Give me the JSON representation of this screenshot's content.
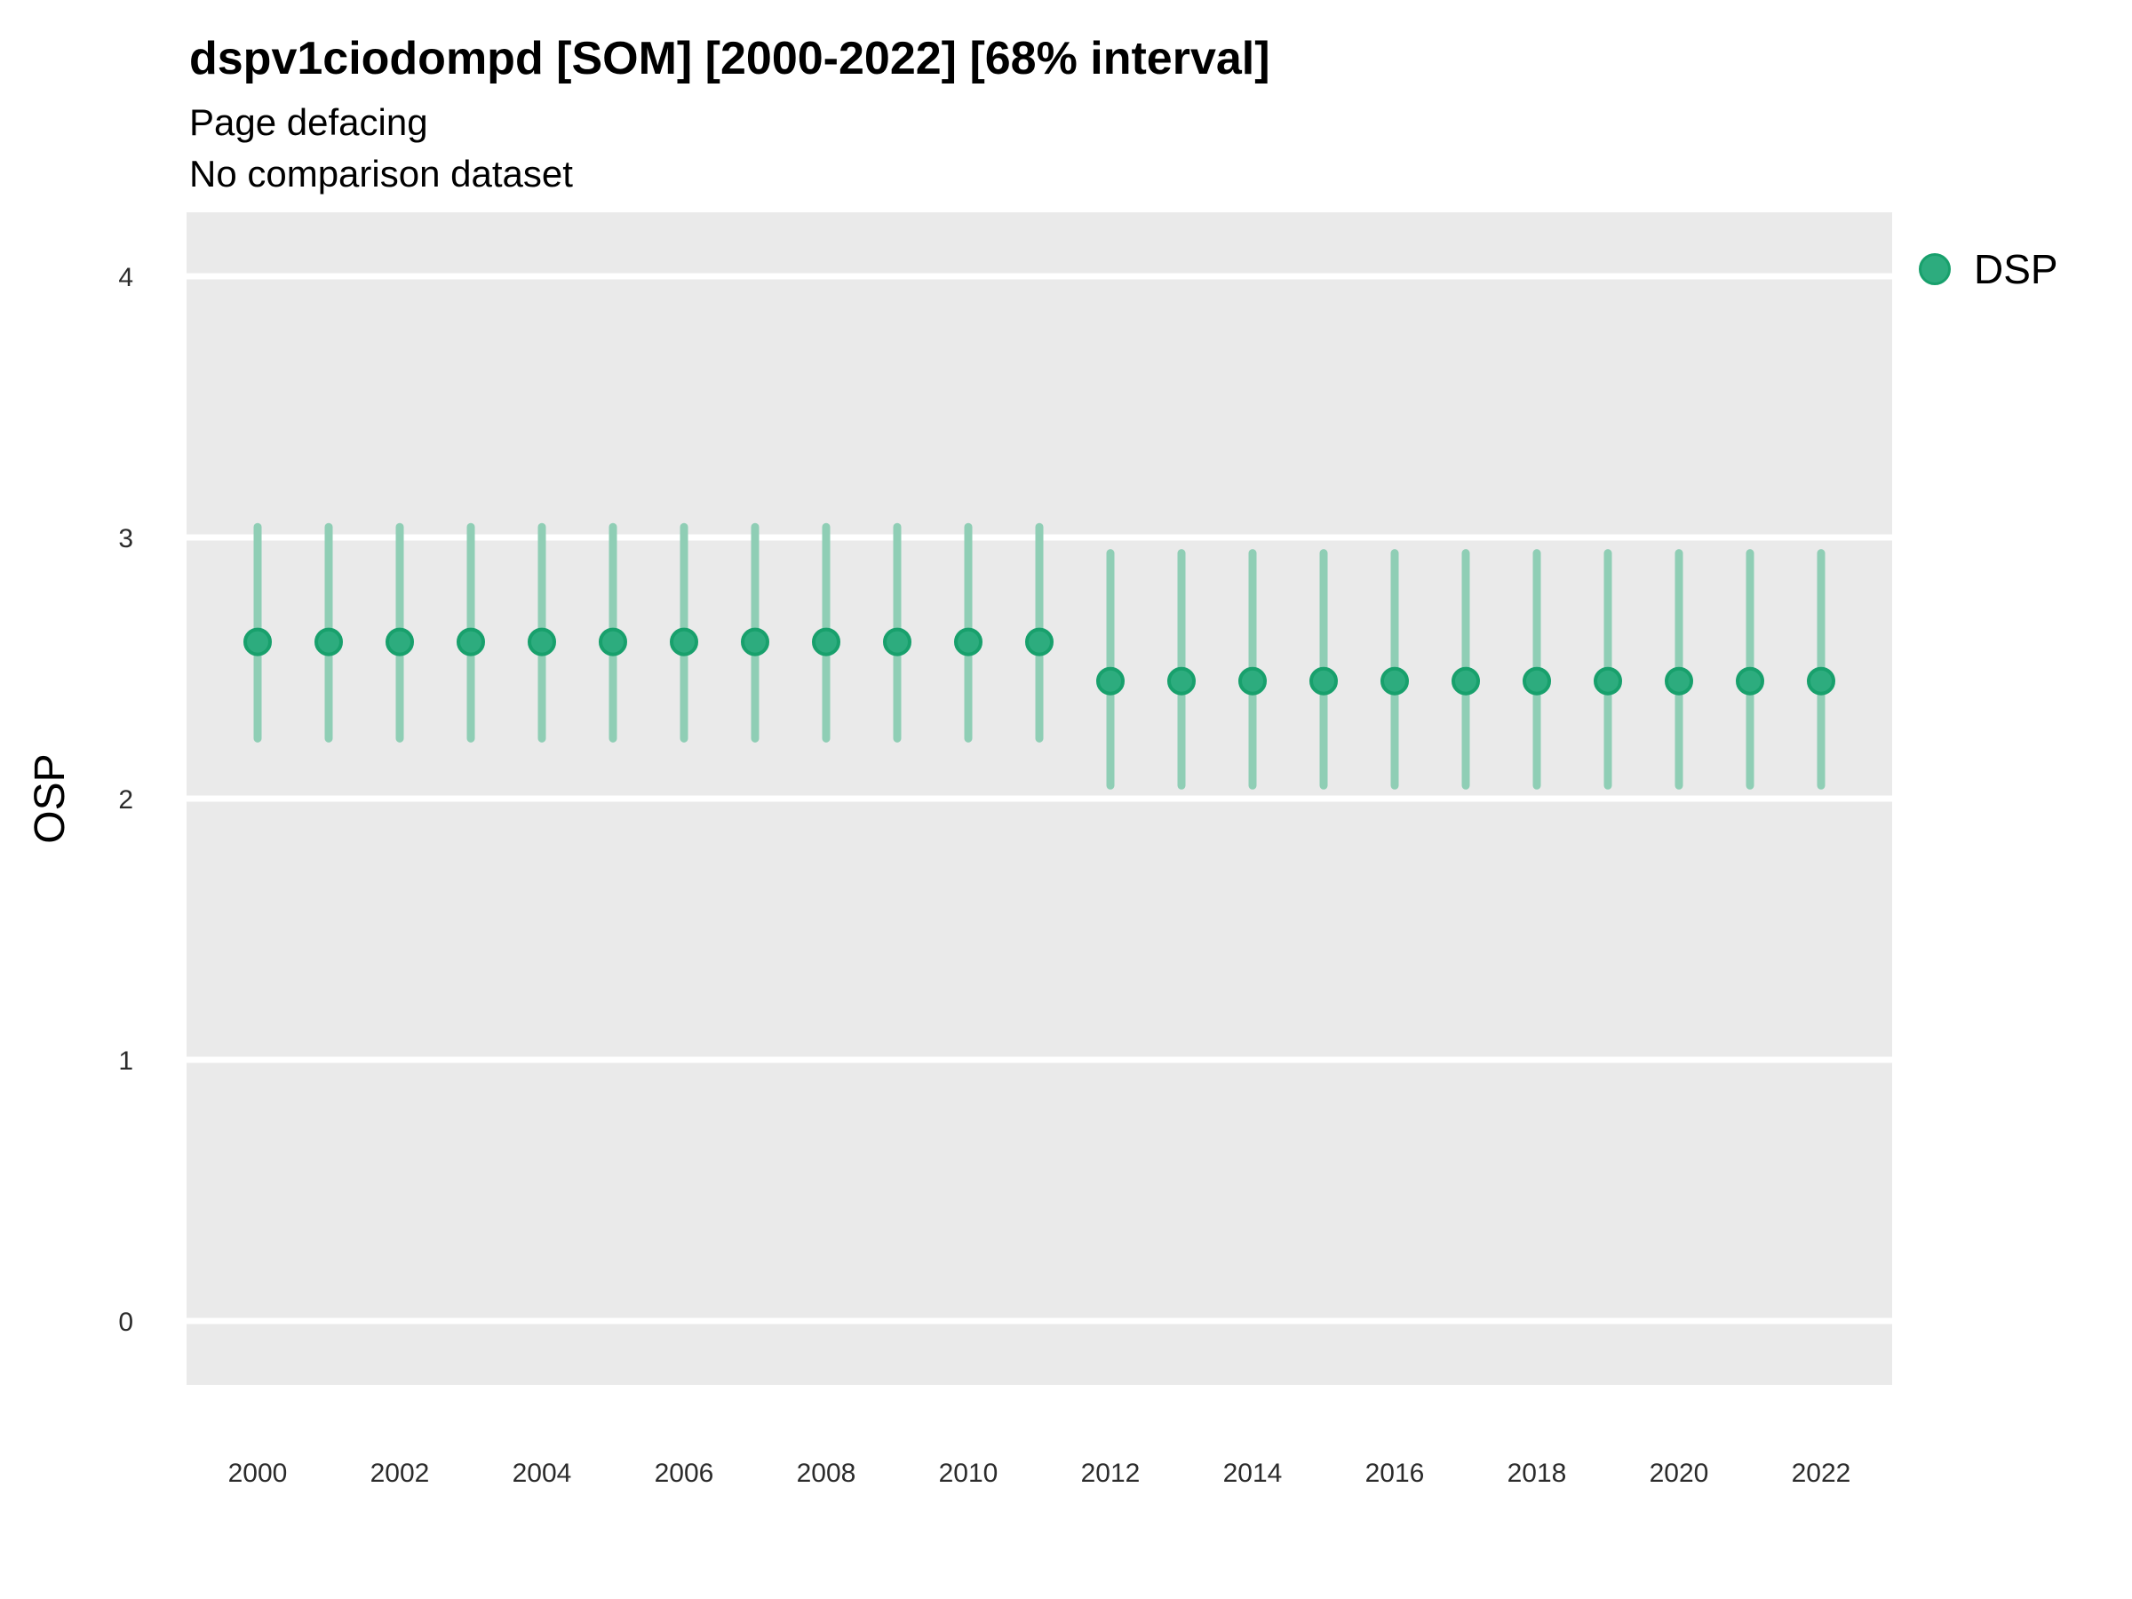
{
  "figure": {
    "title": "dspv1ciodompd [SOM] [2000-2022] [68% interval]",
    "subtitle": "Page defacing",
    "note": "No comparison dataset"
  },
  "legend": {
    "label": "DSP"
  },
  "colors": {
    "point_fill": "#2dac7e",
    "point_stroke": "#18a06c",
    "interval_bar": "#8fceb5",
    "panel_background": "#eaeaea",
    "gridline": "#ffffff",
    "tick_text": "#2b2b2b"
  },
  "chart_data": {
    "type": "scatter",
    "subtype": "pointrange",
    "title": "dspv1ciodompd [SOM] [2000-2022] [68% interval]",
    "subtitle": "Page defacing",
    "annotation": "No comparison dataset",
    "xlabel": "",
    "ylabel": "OSP",
    "interval_level": "68%",
    "legend_position": "right",
    "grid": "major-horizontal-white",
    "ylim": [
      0,
      4
    ],
    "yticks": [
      0,
      1,
      2,
      3,
      4
    ],
    "xticks": [
      2000,
      2002,
      2004,
      2006,
      2008,
      2010,
      2012,
      2014,
      2016,
      2018,
      2020,
      2022
    ],
    "x": [
      2000,
      2001,
      2002,
      2003,
      2004,
      2005,
      2006,
      2007,
      2008,
      2009,
      2010,
      2011,
      2012,
      2013,
      2014,
      2015,
      2016,
      2017,
      2018,
      2019,
      2020,
      2021,
      2022
    ],
    "series": [
      {
        "name": "DSP",
        "y": [
          2.6,
          2.6,
          2.6,
          2.6,
          2.6,
          2.6,
          2.6,
          2.6,
          2.6,
          2.6,
          2.6,
          2.6,
          2.45,
          2.45,
          2.45,
          2.45,
          2.45,
          2.45,
          2.45,
          2.45,
          2.45,
          2.45,
          2.45
        ],
        "ymin": [
          2.23,
          2.23,
          2.23,
          2.23,
          2.23,
          2.23,
          2.23,
          2.23,
          2.23,
          2.23,
          2.23,
          2.23,
          2.05,
          2.05,
          2.05,
          2.05,
          2.05,
          2.05,
          2.05,
          2.05,
          2.05,
          2.05,
          2.05
        ],
        "ymax": [
          3.04,
          3.04,
          3.04,
          3.04,
          3.04,
          3.04,
          3.04,
          3.04,
          3.04,
          3.04,
          3.04,
          3.04,
          2.94,
          2.94,
          2.94,
          2.94,
          2.94,
          2.94,
          2.94,
          2.94,
          2.94,
          2.94,
          2.94
        ]
      }
    ]
  }
}
